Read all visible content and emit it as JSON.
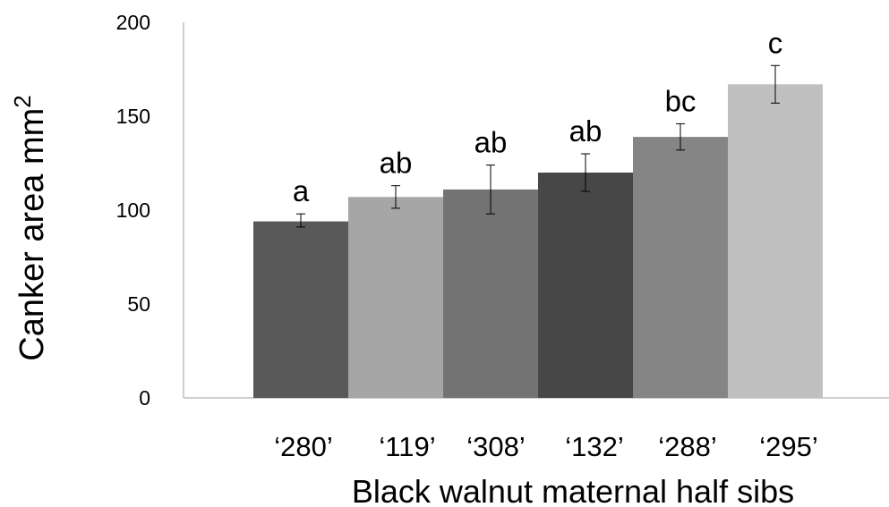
{
  "chart_data": {
    "type": "bar",
    "title": "",
    "xlabel": "Black walnut maternal half sibs",
    "ylabel": "Canker area mm",
    "ylabel_superscript": "2",
    "ylim": [
      0,
      200
    ],
    "yticks": [
      0,
      50,
      100,
      150,
      200
    ],
    "grid": false,
    "legend": "none",
    "categories": [
      "‘280’",
      "‘119’",
      "‘308’",
      "‘132’",
      "‘288’",
      "‘295’"
    ],
    "values": [
      94,
      107,
      111,
      120,
      139,
      167
    ],
    "error_low": [
      91,
      101,
      98,
      110,
      132,
      157
    ],
    "error_high": [
      98,
      113,
      124,
      130,
      146,
      177
    ],
    "significance_letters": [
      "a",
      "ab",
      "ab",
      "ab",
      "bc",
      "c"
    ],
    "colors": [
      "#595959",
      "#a6a6a6",
      "#737373",
      "#474747",
      "#858585",
      "#c0c0c0"
    ],
    "axis_color": "#bfbfbf"
  }
}
